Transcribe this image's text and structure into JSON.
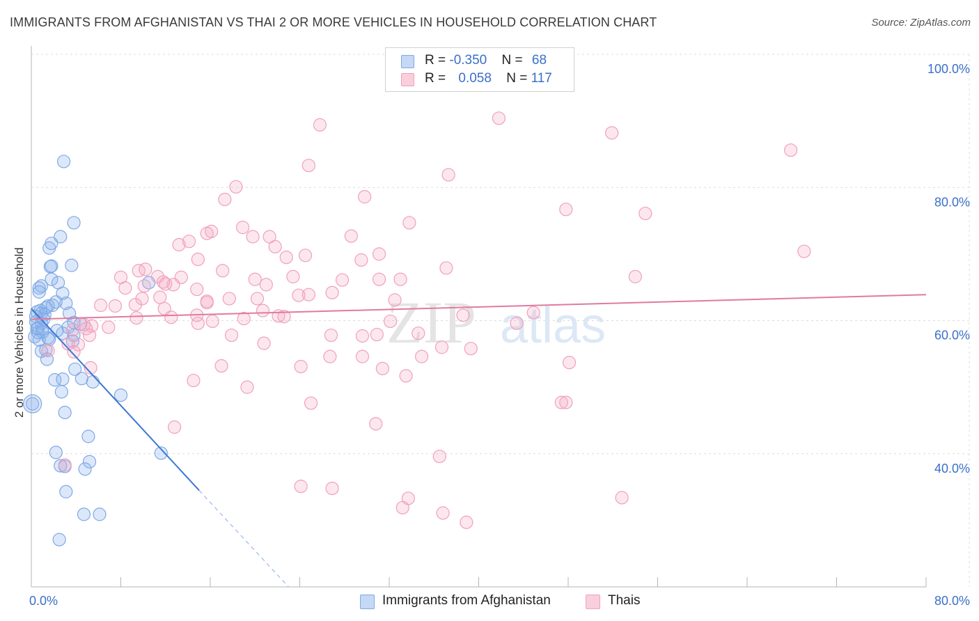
{
  "title": "IMMIGRANTS FROM AFGHANISTAN VS THAI 2 OR MORE VEHICLES IN HOUSEHOLD CORRELATION CHART",
  "source": "Source: ZipAtlas.com",
  "watermark": {
    "zip": "ZIP",
    "atlas": "atlas"
  },
  "legend": {
    "rows": [
      {
        "r_label": "R = ",
        "r_value": "-0.350",
        "n_label": "N = ",
        "n_value": "68"
      },
      {
        "r_label": "R = ",
        "r_value": "0.058",
        "n_label": "N = ",
        "n_value": "117"
      }
    ]
  },
  "colors": {
    "afghanistan": "#7fa8e6",
    "afghanistan_line": "#3a78d4",
    "thais": "#f0a0bc",
    "thais_line": "#e07aa0",
    "tick_label": "#3a6fc8"
  },
  "chart_data": {
    "type": "scatter",
    "title": "IMMIGRANTS FROM AFGHANISTAN VS THAI 2 OR MORE VEHICLES IN HOUSEHOLD CORRELATION CHART",
    "xlabel": "",
    "ylabel": "2 or more Vehicles in Household",
    "xlim": [
      0,
      80
    ],
    "ylim": [
      20,
      100
    ],
    "x_tick_labels": [
      "0.0%",
      "80.0%"
    ],
    "y_ticks": [
      40,
      60,
      80,
      100
    ],
    "y_tick_labels": [
      "40.0%",
      "60.0%",
      "80.0%",
      "100.0%"
    ],
    "grid": true,
    "series": [
      {
        "name": "Immigrants from Afghanistan",
        "r": -0.35,
        "n": 68,
        "trend": {
          "x0": 0,
          "y0": 61.8,
          "x1": 15,
          "y1": 34.5,
          "dash_to_x": 23,
          "dash_to_y": 20
        },
        "points": [
          [
            2.9,
            83.9
          ],
          [
            3.8,
            74.7
          ],
          [
            2.6,
            72.6
          ],
          [
            1.6,
            70.9
          ],
          [
            1.8,
            71.6
          ],
          [
            1.7,
            68.1
          ],
          [
            1.8,
            68.2
          ],
          [
            3.6,
            68.3
          ],
          [
            1.8,
            66.2
          ],
          [
            0.9,
            65.2
          ],
          [
            0.7,
            64.9
          ],
          [
            2.4,
            65.7
          ],
          [
            0.7,
            64.3
          ],
          [
            2.8,
            64.1
          ],
          [
            2.2,
            62.8
          ],
          [
            3.1,
            62.6
          ],
          [
            1.5,
            62.2
          ],
          [
            1.9,
            62.3
          ],
          [
            1.3,
            61.9
          ],
          [
            0.8,
            61.5
          ],
          [
            0.5,
            61.3
          ],
          [
            0.9,
            61.1
          ],
          [
            1.2,
            60.9
          ],
          [
            3.4,
            61.1
          ],
          [
            0.4,
            59.8
          ],
          [
            0.9,
            59.6
          ],
          [
            3.8,
            59.7
          ],
          [
            0.6,
            58.9
          ],
          [
            3.3,
            59.0
          ],
          [
            1.0,
            58.7
          ],
          [
            4.4,
            59.5
          ],
          [
            0.6,
            58.2
          ],
          [
            2.8,
            58.1
          ],
          [
            3.8,
            57.8
          ],
          [
            0.3,
            57.6
          ],
          [
            0.7,
            57.1
          ],
          [
            1.6,
            57.2
          ],
          [
            3.7,
            56.9
          ],
          [
            1.3,
            55.6
          ],
          [
            0.9,
            55.4
          ],
          [
            1.4,
            54.2
          ],
          [
            3.9,
            52.7
          ],
          [
            2.1,
            51.1
          ],
          [
            2.8,
            51.2
          ],
          [
            4.5,
            51.3
          ],
          [
            5.5,
            50.8
          ],
          [
            2.7,
            49.3
          ],
          [
            8.0,
            48.8
          ],
          [
            0.1,
            47.5
          ],
          [
            3.0,
            46.2
          ],
          [
            5.1,
            42.6
          ],
          [
            2.2,
            40.2
          ],
          [
            11.6,
            40.1
          ],
          [
            5.2,
            38.8
          ],
          [
            2.6,
            38.2
          ],
          [
            3.0,
            38.1
          ],
          [
            4.8,
            37.7
          ],
          [
            3.1,
            34.3
          ],
          [
            4.7,
            30.9
          ],
          [
            6.1,
            30.9
          ],
          [
            2.5,
            27.1
          ],
          [
            10.5,
            65.7
          ],
          [
            1.1,
            60.2
          ],
          [
            0.5,
            58.8
          ],
          [
            1.5,
            57.4
          ],
          [
            2.3,
            58.5
          ],
          [
            0.4,
            60.6
          ],
          [
            1.0,
            58.3
          ]
        ]
      },
      {
        "name": "Thais",
        "r": 0.058,
        "n": 117,
        "trend": {
          "x0": 0,
          "y0": 60.2,
          "x1": 80,
          "y1": 63.9
        },
        "points": [
          [
            41.8,
            90.4
          ],
          [
            25.8,
            89.4
          ],
          [
            51.9,
            88.2
          ],
          [
            67.9,
            85.6
          ],
          [
            24.8,
            83.3
          ],
          [
            37.3,
            81.9
          ],
          [
            18.3,
            80.1
          ],
          [
            17.3,
            78.2
          ],
          [
            29.8,
            78.6
          ],
          [
            47.8,
            76.7
          ],
          [
            54.9,
            76.1
          ],
          [
            33.8,
            74.7
          ],
          [
            18.9,
            74.0
          ],
          [
            16.1,
            73.4
          ],
          [
            15.7,
            73.1
          ],
          [
            21.3,
            72.6
          ],
          [
            28.6,
            72.7
          ],
          [
            14.1,
            71.9
          ],
          [
            13.2,
            71.4
          ],
          [
            19.8,
            72.6
          ],
          [
            21.8,
            71.1
          ],
          [
            24.5,
            69.8
          ],
          [
            31.1,
            70.0
          ],
          [
            22.8,
            69.5
          ],
          [
            69.1,
            70.4
          ],
          [
            14.9,
            69.2
          ],
          [
            29.5,
            69.1
          ],
          [
            37.1,
            67.9
          ],
          [
            17.1,
            67.5
          ],
          [
            9.6,
            67.5
          ],
          [
            10.2,
            67.7
          ],
          [
            27.8,
            66.1
          ],
          [
            33.0,
            66.2
          ],
          [
            20.0,
            66.2
          ],
          [
            23.4,
            66.6
          ],
          [
            13.4,
            66.5
          ],
          [
            8.0,
            66.5
          ],
          [
            11.3,
            66.6
          ],
          [
            31.1,
            66.2
          ],
          [
            54.0,
            66.6
          ],
          [
            12.7,
            65.4
          ],
          [
            14.8,
            64.7
          ],
          [
            10.1,
            65.2
          ],
          [
            11.8,
            65.8
          ],
          [
            12.0,
            65.5
          ],
          [
            21.0,
            65.4
          ],
          [
            8.4,
            64.9
          ],
          [
            26.9,
            64.2
          ],
          [
            24.8,
            63.9
          ],
          [
            11.5,
            63.5
          ],
          [
            17.7,
            63.3
          ],
          [
            9.9,
            63.3
          ],
          [
            15.7,
            62.7
          ],
          [
            20.2,
            63.3
          ],
          [
            32.5,
            63.1
          ],
          [
            6.2,
            62.3
          ],
          [
            7.5,
            62.2
          ],
          [
            9.3,
            62.4
          ],
          [
            20.7,
            61.5
          ],
          [
            11.9,
            61.8
          ],
          [
            14.8,
            60.8
          ],
          [
            38.6,
            60.8
          ],
          [
            44.9,
            61.2
          ],
          [
            22.1,
            60.7
          ],
          [
            9.4,
            60.4
          ],
          [
            12.5,
            60.5
          ],
          [
            19.0,
            60.3
          ],
          [
            32.1,
            59.9
          ],
          [
            16.2,
            59.9
          ],
          [
            5.4,
            59.2
          ],
          [
            6.9,
            59.0
          ],
          [
            43.4,
            59.6
          ],
          [
            22.6,
            60.6
          ],
          [
            17.9,
            57.8
          ],
          [
            26.8,
            57.8
          ],
          [
            30.9,
            57.9
          ],
          [
            34.6,
            58.1
          ],
          [
            14.9,
            59.6
          ],
          [
            4.7,
            59.4
          ],
          [
            3.7,
            58.6
          ],
          [
            4.9,
            58.8
          ],
          [
            5.2,
            57.8
          ],
          [
            20.8,
            56.6
          ],
          [
            36.7,
            56.0
          ],
          [
            39.3,
            55.8
          ],
          [
            26.7,
            54.6
          ],
          [
            29.6,
            54.6
          ],
          [
            34.9,
            54.6
          ],
          [
            48.1,
            53.7
          ],
          [
            24.1,
            53.1
          ],
          [
            17.0,
            53.2
          ],
          [
            31.4,
            52.8
          ],
          [
            3.3,
            56.5
          ],
          [
            4.2,
            56.4
          ],
          [
            5.3,
            52.9
          ],
          [
            1.5,
            55.5
          ],
          [
            3.8,
            55.3
          ],
          [
            33.5,
            51.7
          ],
          [
            14.5,
            51.0
          ],
          [
            19.3,
            50.0
          ],
          [
            25.0,
            47.6
          ],
          [
            47.4,
            47.7
          ],
          [
            47.8,
            47.7
          ],
          [
            30.8,
            44.5
          ],
          [
            12.8,
            44.0
          ],
          [
            36.5,
            39.6
          ],
          [
            3.0,
            38.3
          ],
          [
            24.1,
            35.1
          ],
          [
            26.9,
            34.8
          ],
          [
            33.7,
            33.3
          ],
          [
            52.8,
            33.4
          ],
          [
            33.2,
            31.9
          ],
          [
            36.8,
            31.1
          ],
          [
            38.9,
            29.7
          ],
          [
            29.6,
            57.7
          ],
          [
            15.7,
            62.9
          ],
          [
            23.9,
            63.8
          ]
        ]
      }
    ]
  },
  "bottom_legend": [
    {
      "label": "Immigrants from Afghanistan"
    },
    {
      "label": "Thais"
    }
  ]
}
